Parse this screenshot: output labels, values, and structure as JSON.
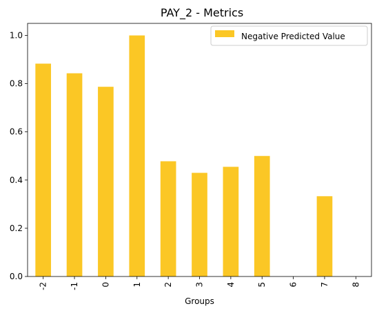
{
  "chart_data": {
    "type": "bar",
    "title": "PAY_2 - Metrics",
    "xlabel": "Groups",
    "ylabel": "",
    "categories": [
      "-2",
      "-1",
      "0",
      "1",
      "2",
      "3",
      "4",
      "5",
      "6",
      "7",
      "8"
    ],
    "series": [
      {
        "name": "Negative Predicted Value",
        "values": [
          0.883,
          0.843,
          0.787,
          1.0,
          0.478,
          0.43,
          0.455,
          0.5,
          0,
          0.333,
          0
        ],
        "color": "#fbc725"
      }
    ],
    "ylim": [
      0,
      1.05
    ],
    "yticks": [
      0.0,
      0.2,
      0.4,
      0.6,
      0.8,
      1.0
    ],
    "ytick_labels": [
      "0.0",
      "0.2",
      "0.4",
      "0.6",
      "0.8",
      "1.0"
    ],
    "grid": false,
    "legend_position": "top-right",
    "x_tick_rotation": "vertical"
  }
}
